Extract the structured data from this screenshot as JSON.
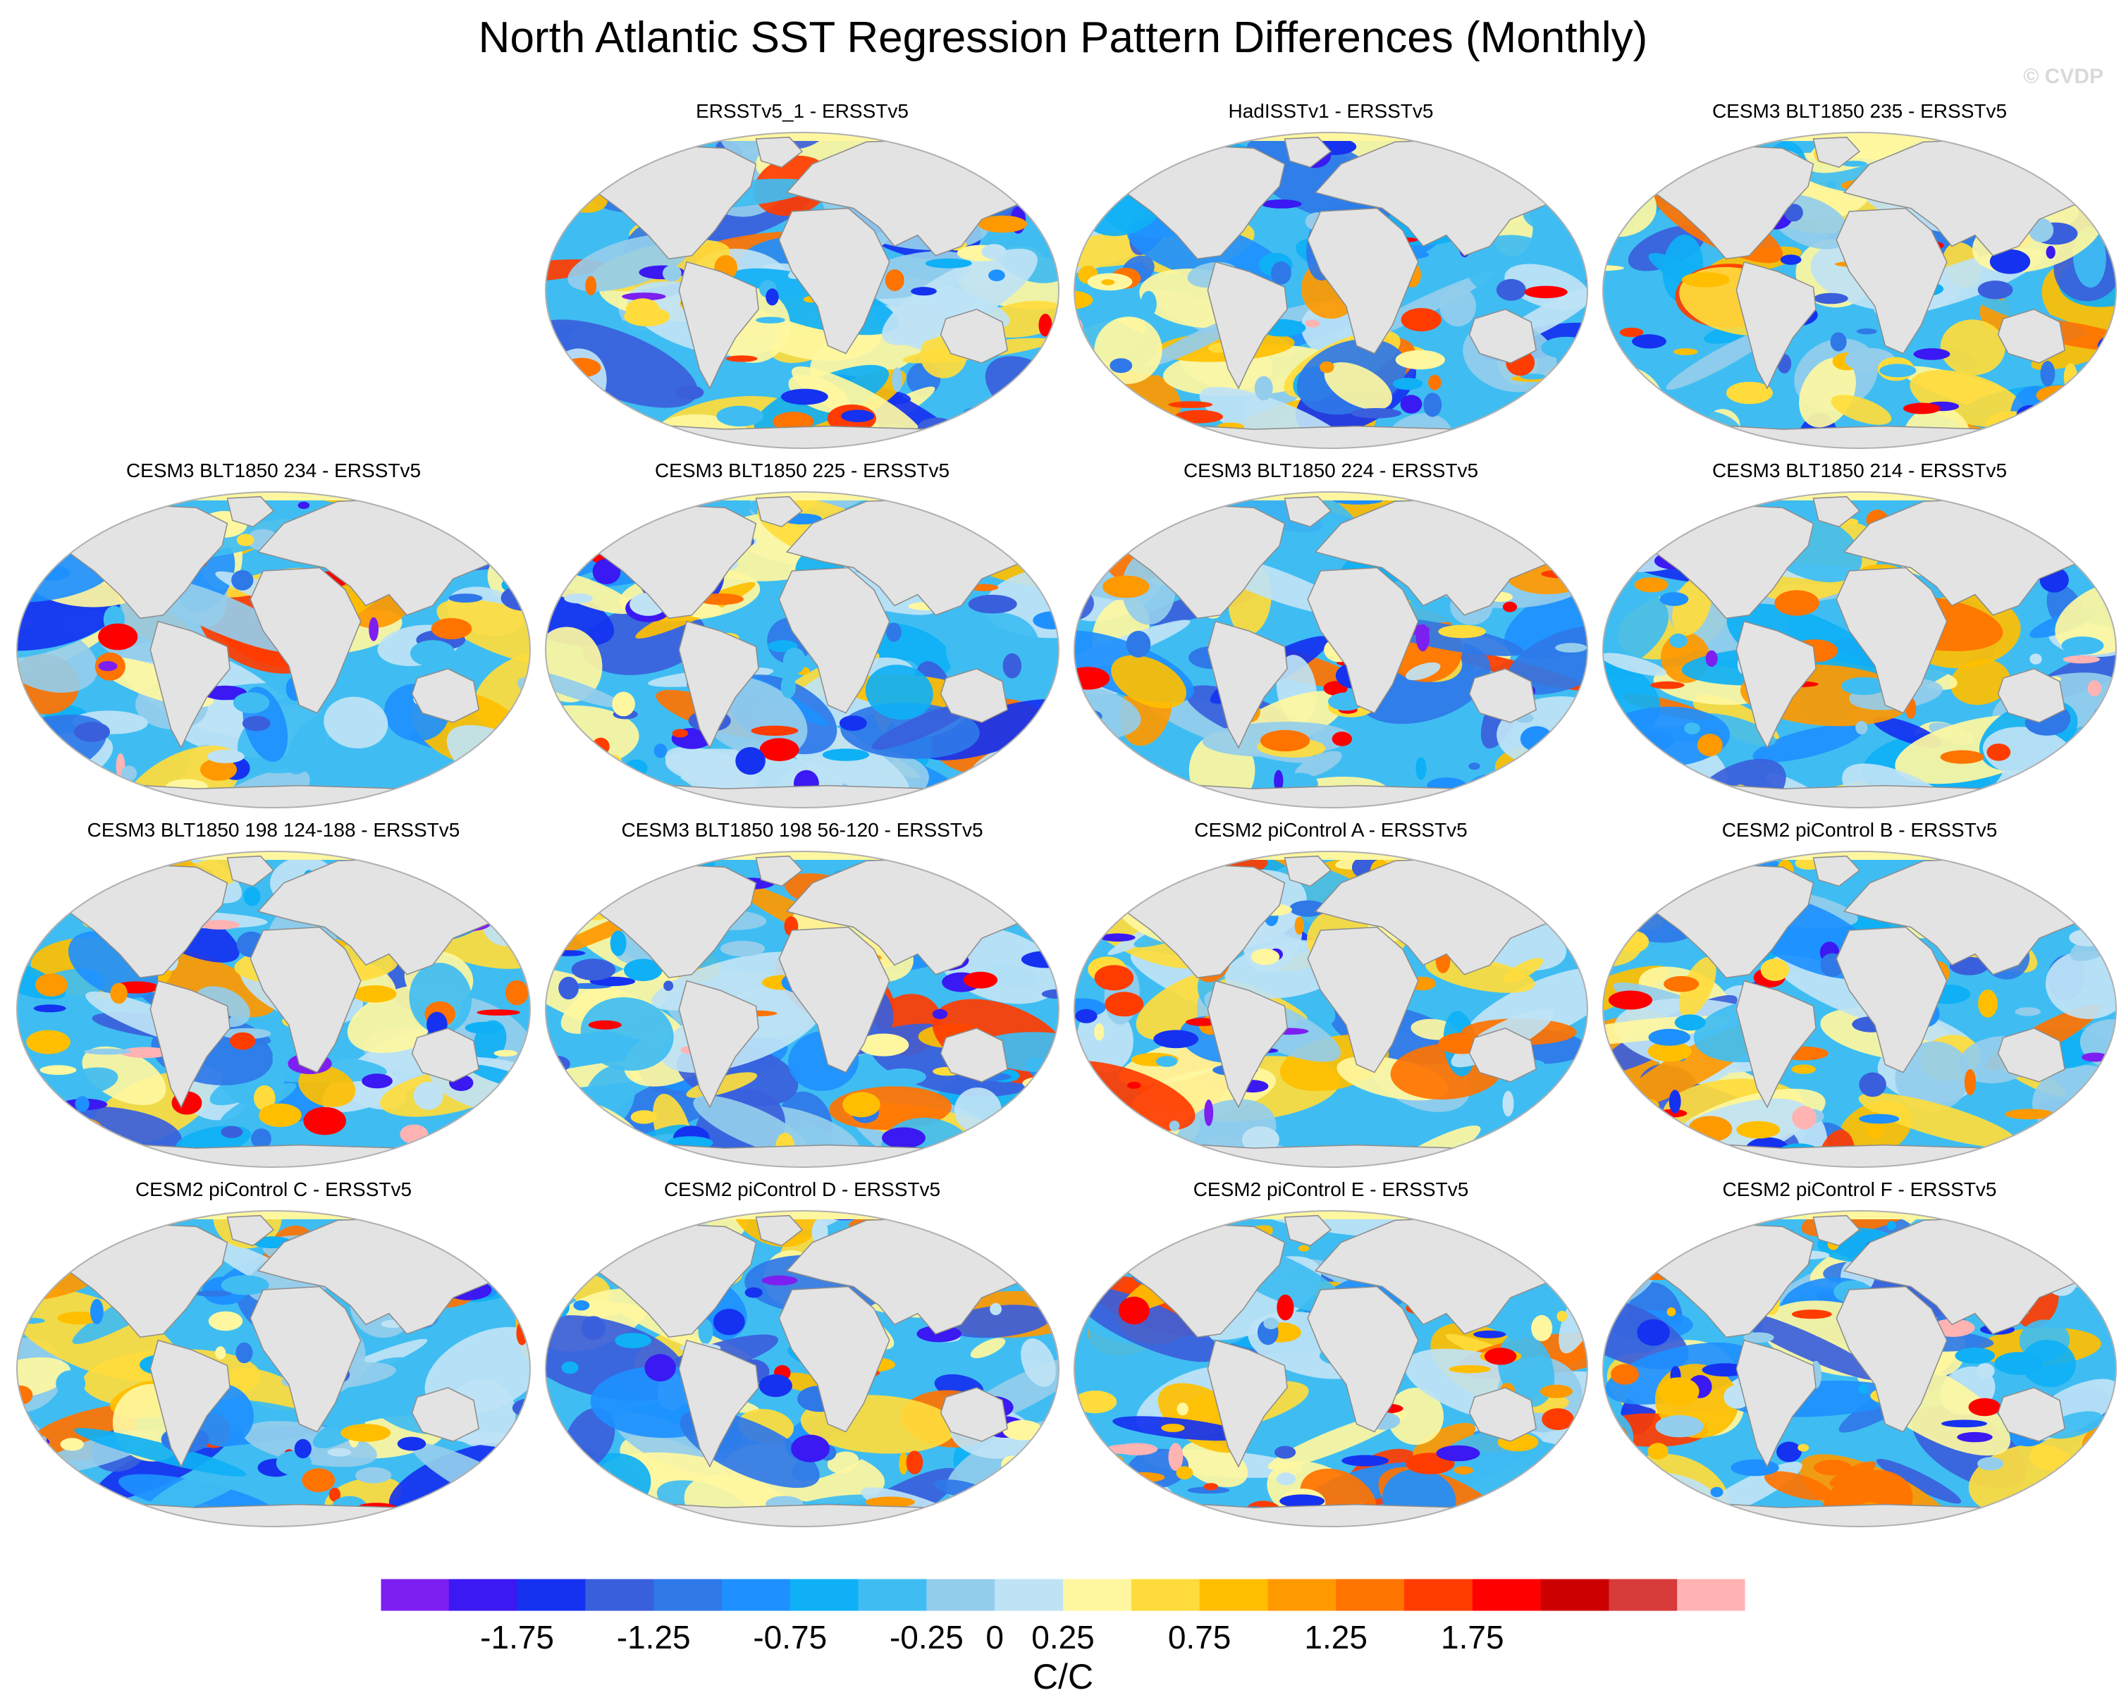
{
  "title": "North Atlantic SST Regression Pattern Differences (Monthly)",
  "watermark": "© CVDP",
  "chart_data": {
    "type": "heatmap",
    "projection": "robinson-global-map",
    "panels": [
      {
        "title": "ERSSTv5_1 - ERSSTv5",
        "row": 0,
        "col": 1,
        "seed": 11
      },
      {
        "title": "HadISSTv1 - ERSSTv5",
        "row": 0,
        "col": 2,
        "seed": 23
      },
      {
        "title": "CESM3 BLT1850 235 - ERSSTv5",
        "row": 0,
        "col": 3,
        "seed": 37
      },
      {
        "title": "CESM3 BLT1850 234 - ERSSTv5",
        "row": 1,
        "col": 0,
        "seed": 41
      },
      {
        "title": "CESM3 BLT1850 225 - ERSSTv5",
        "row": 1,
        "col": 1,
        "seed": 53
      },
      {
        "title": "CESM3 BLT1850 224 - ERSSTv5",
        "row": 1,
        "col": 2,
        "seed": 67
      },
      {
        "title": "CESM3 BLT1850 214 - ERSSTv5",
        "row": 1,
        "col": 3,
        "seed": 71
      },
      {
        "title": "CESM3 BLT1850 198 124-188 - ERSSTv5",
        "row": 2,
        "col": 0,
        "seed": 83
      },
      {
        "title": "CESM3 BLT1850 198 56-120 - ERSSTv5",
        "row": 2,
        "col": 1,
        "seed": 97
      },
      {
        "title": "CESM2 piControl A - ERSSTv5",
        "row": 2,
        "col": 2,
        "seed": 101
      },
      {
        "title": "CESM2 piControl B - ERSSTv5",
        "row": 2,
        "col": 3,
        "seed": 113
      },
      {
        "title": "CESM2 piControl C - ERSSTv5",
        "row": 3,
        "col": 0,
        "seed": 127
      },
      {
        "title": "CESM2 piControl D - ERSSTv5",
        "row": 3,
        "col": 1,
        "seed": 131
      },
      {
        "title": "CESM2 piControl E - ERSSTv5",
        "row": 3,
        "col": 2,
        "seed": 149
      },
      {
        "title": "CESM2 piControl F - ERSSTv5",
        "row": 3,
        "col": 3,
        "seed": 157
      }
    ],
    "colorbar": {
      "units": "C/C",
      "levels": [
        -2,
        -1.75,
        -1.5,
        -1.25,
        -1,
        -0.75,
        -0.5,
        -0.25,
        0,
        0.25,
        0.5,
        0.75,
        1,
        1.25,
        1.5,
        1.75,
        2
      ],
      "labeled_ticks": [
        "-1.75",
        "-1.25",
        "-0.75",
        "-0.25",
        "0",
        "0.25",
        "0.75",
        "1.25",
        "1.75"
      ],
      "colors": [
        "#7d1ff0",
        "#3a19f2",
        "#1532f0",
        "#3a5fdc",
        "#2f78e8",
        "#1e90ff",
        "#0fb0f5",
        "#3fbdf2",
        "#94cdec",
        "#bfe3f5",
        "#fff7a0",
        "#ffdc3c",
        "#ffbf00",
        "#ff9900",
        "#ff7300",
        "#ff3c00",
        "#ff0000",
        "#cc0000",
        "#d93a3a",
        "#ffb3b3"
      ]
    }
  }
}
